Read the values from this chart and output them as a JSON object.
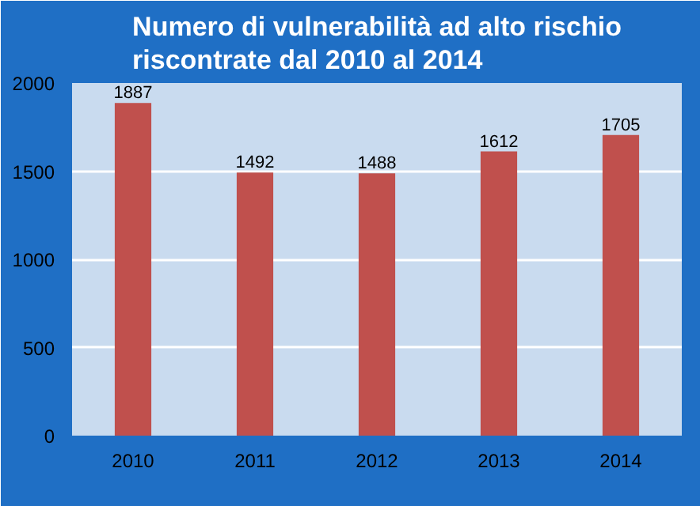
{
  "chart_data": {
    "type": "bar",
    "title": "Numero di vulnerabilità ad alto rischio\nriscontrate dal 2010 al 2014",
    "categories": [
      "2010",
      "2011",
      "2012",
      "2013",
      "2014"
    ],
    "values": [
      1887,
      1492,
      1488,
      1612,
      1705
    ],
    "color": "#c0504d",
    "ylim": [
      0,
      2000
    ],
    "yticks": [
      0,
      500,
      1000,
      1500,
      2000
    ],
    "grid": "y",
    "data_labels": true
  }
}
